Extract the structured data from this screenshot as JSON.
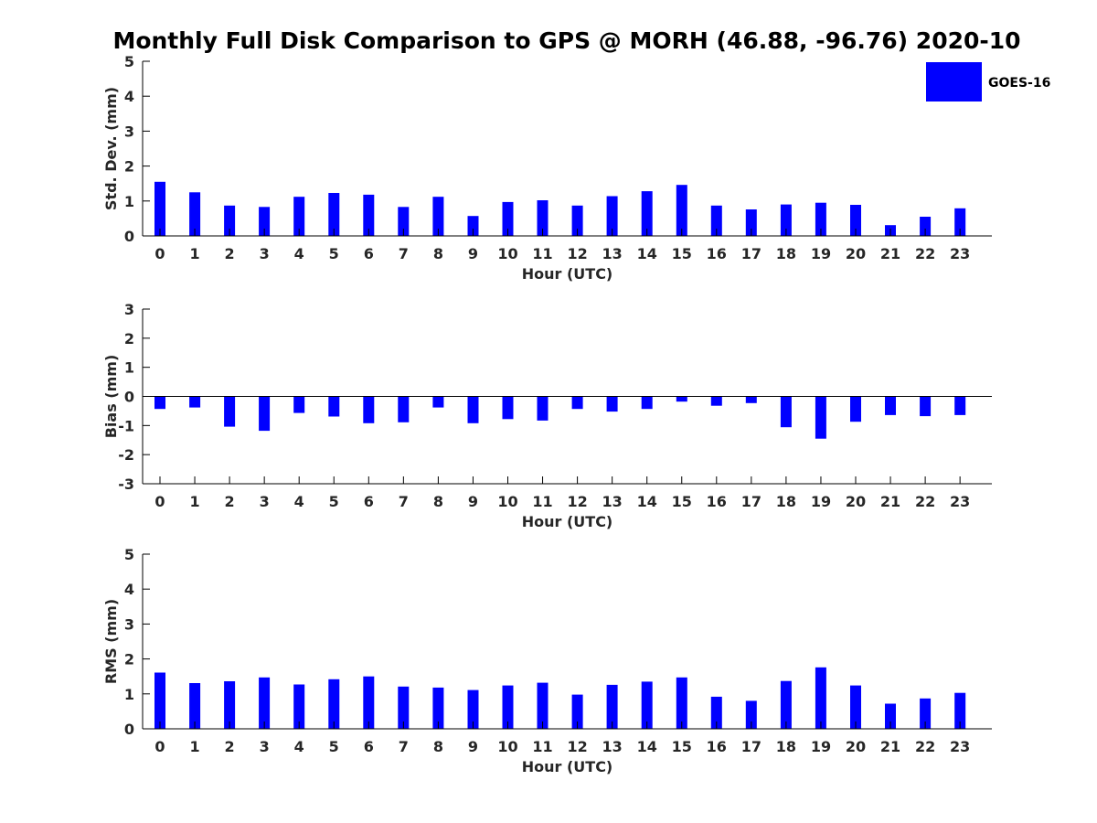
{
  "chart_data": {
    "title": "Monthly Full Disk Comparison to GPS @ MORH (46.88, -96.76) 2020-10",
    "legend": {
      "label": "GOES-16",
      "color": "#0000ff",
      "placement": "top-right"
    },
    "bar_color": "#0000ff",
    "panels": [
      {
        "type": "bar",
        "name": "std_dev",
        "ylabel": "Std. Dev. (mm)",
        "xlabel": "Hour (UTC)",
        "ylim": [
          0,
          5
        ],
        "yticks": [
          "0",
          "1",
          "2",
          "3",
          "4",
          "5"
        ],
        "categories": [
          "0",
          "1",
          "2",
          "3",
          "4",
          "5",
          "6",
          "7",
          "8",
          "9",
          "10",
          "11",
          "12",
          "13",
          "14",
          "15",
          "16",
          "17",
          "18",
          "19",
          "20",
          "21",
          "22",
          "23"
        ],
        "values": [
          1.55,
          1.25,
          0.87,
          0.83,
          1.12,
          1.23,
          1.18,
          0.83,
          1.12,
          0.57,
          0.97,
          1.02,
          0.87,
          1.14,
          1.28,
          1.46,
          0.87,
          0.76,
          0.9,
          0.95,
          0.89,
          0.31,
          0.55,
          0.79
        ]
      },
      {
        "type": "bar",
        "name": "bias",
        "ylabel": "Bias (mm)",
        "xlabel": "Hour (UTC)",
        "ylim": [
          -3,
          3
        ],
        "yticks": [
          "-3",
          "-2",
          "-1",
          "0",
          "1",
          "2",
          "3"
        ],
        "categories": [
          "0",
          "1",
          "2",
          "3",
          "4",
          "5",
          "6",
          "7",
          "8",
          "9",
          "10",
          "11",
          "12",
          "13",
          "14",
          "15",
          "16",
          "17",
          "18",
          "19",
          "20",
          "21",
          "22",
          "23"
        ],
        "values": [
          -0.43,
          -0.38,
          -1.04,
          -1.18,
          -0.57,
          -0.69,
          -0.92,
          -0.89,
          -0.38,
          -0.92,
          -0.78,
          -0.83,
          -0.43,
          -0.52,
          -0.43,
          -0.18,
          -0.32,
          -0.23,
          -1.06,
          -1.45,
          -0.87,
          -0.64,
          -0.68,
          -0.64
        ]
      },
      {
        "type": "bar",
        "name": "rms",
        "ylabel": "RMS (mm)",
        "xlabel": "Hour (UTC)",
        "ylim": [
          0,
          5
        ],
        "yticks": [
          "0",
          "1",
          "2",
          "3",
          "4",
          "5"
        ],
        "categories": [
          "0",
          "1",
          "2",
          "3",
          "4",
          "5",
          "6",
          "7",
          "8",
          "9",
          "10",
          "11",
          "12",
          "13",
          "14",
          "15",
          "16",
          "17",
          "18",
          "19",
          "20",
          "21",
          "22",
          "23"
        ],
        "values": [
          1.61,
          1.31,
          1.36,
          1.47,
          1.27,
          1.42,
          1.5,
          1.21,
          1.18,
          1.11,
          1.24,
          1.32,
          0.98,
          1.26,
          1.35,
          1.47,
          0.92,
          0.8,
          1.37,
          1.76,
          1.24,
          0.72,
          0.87,
          1.03
        ]
      }
    ]
  }
}
